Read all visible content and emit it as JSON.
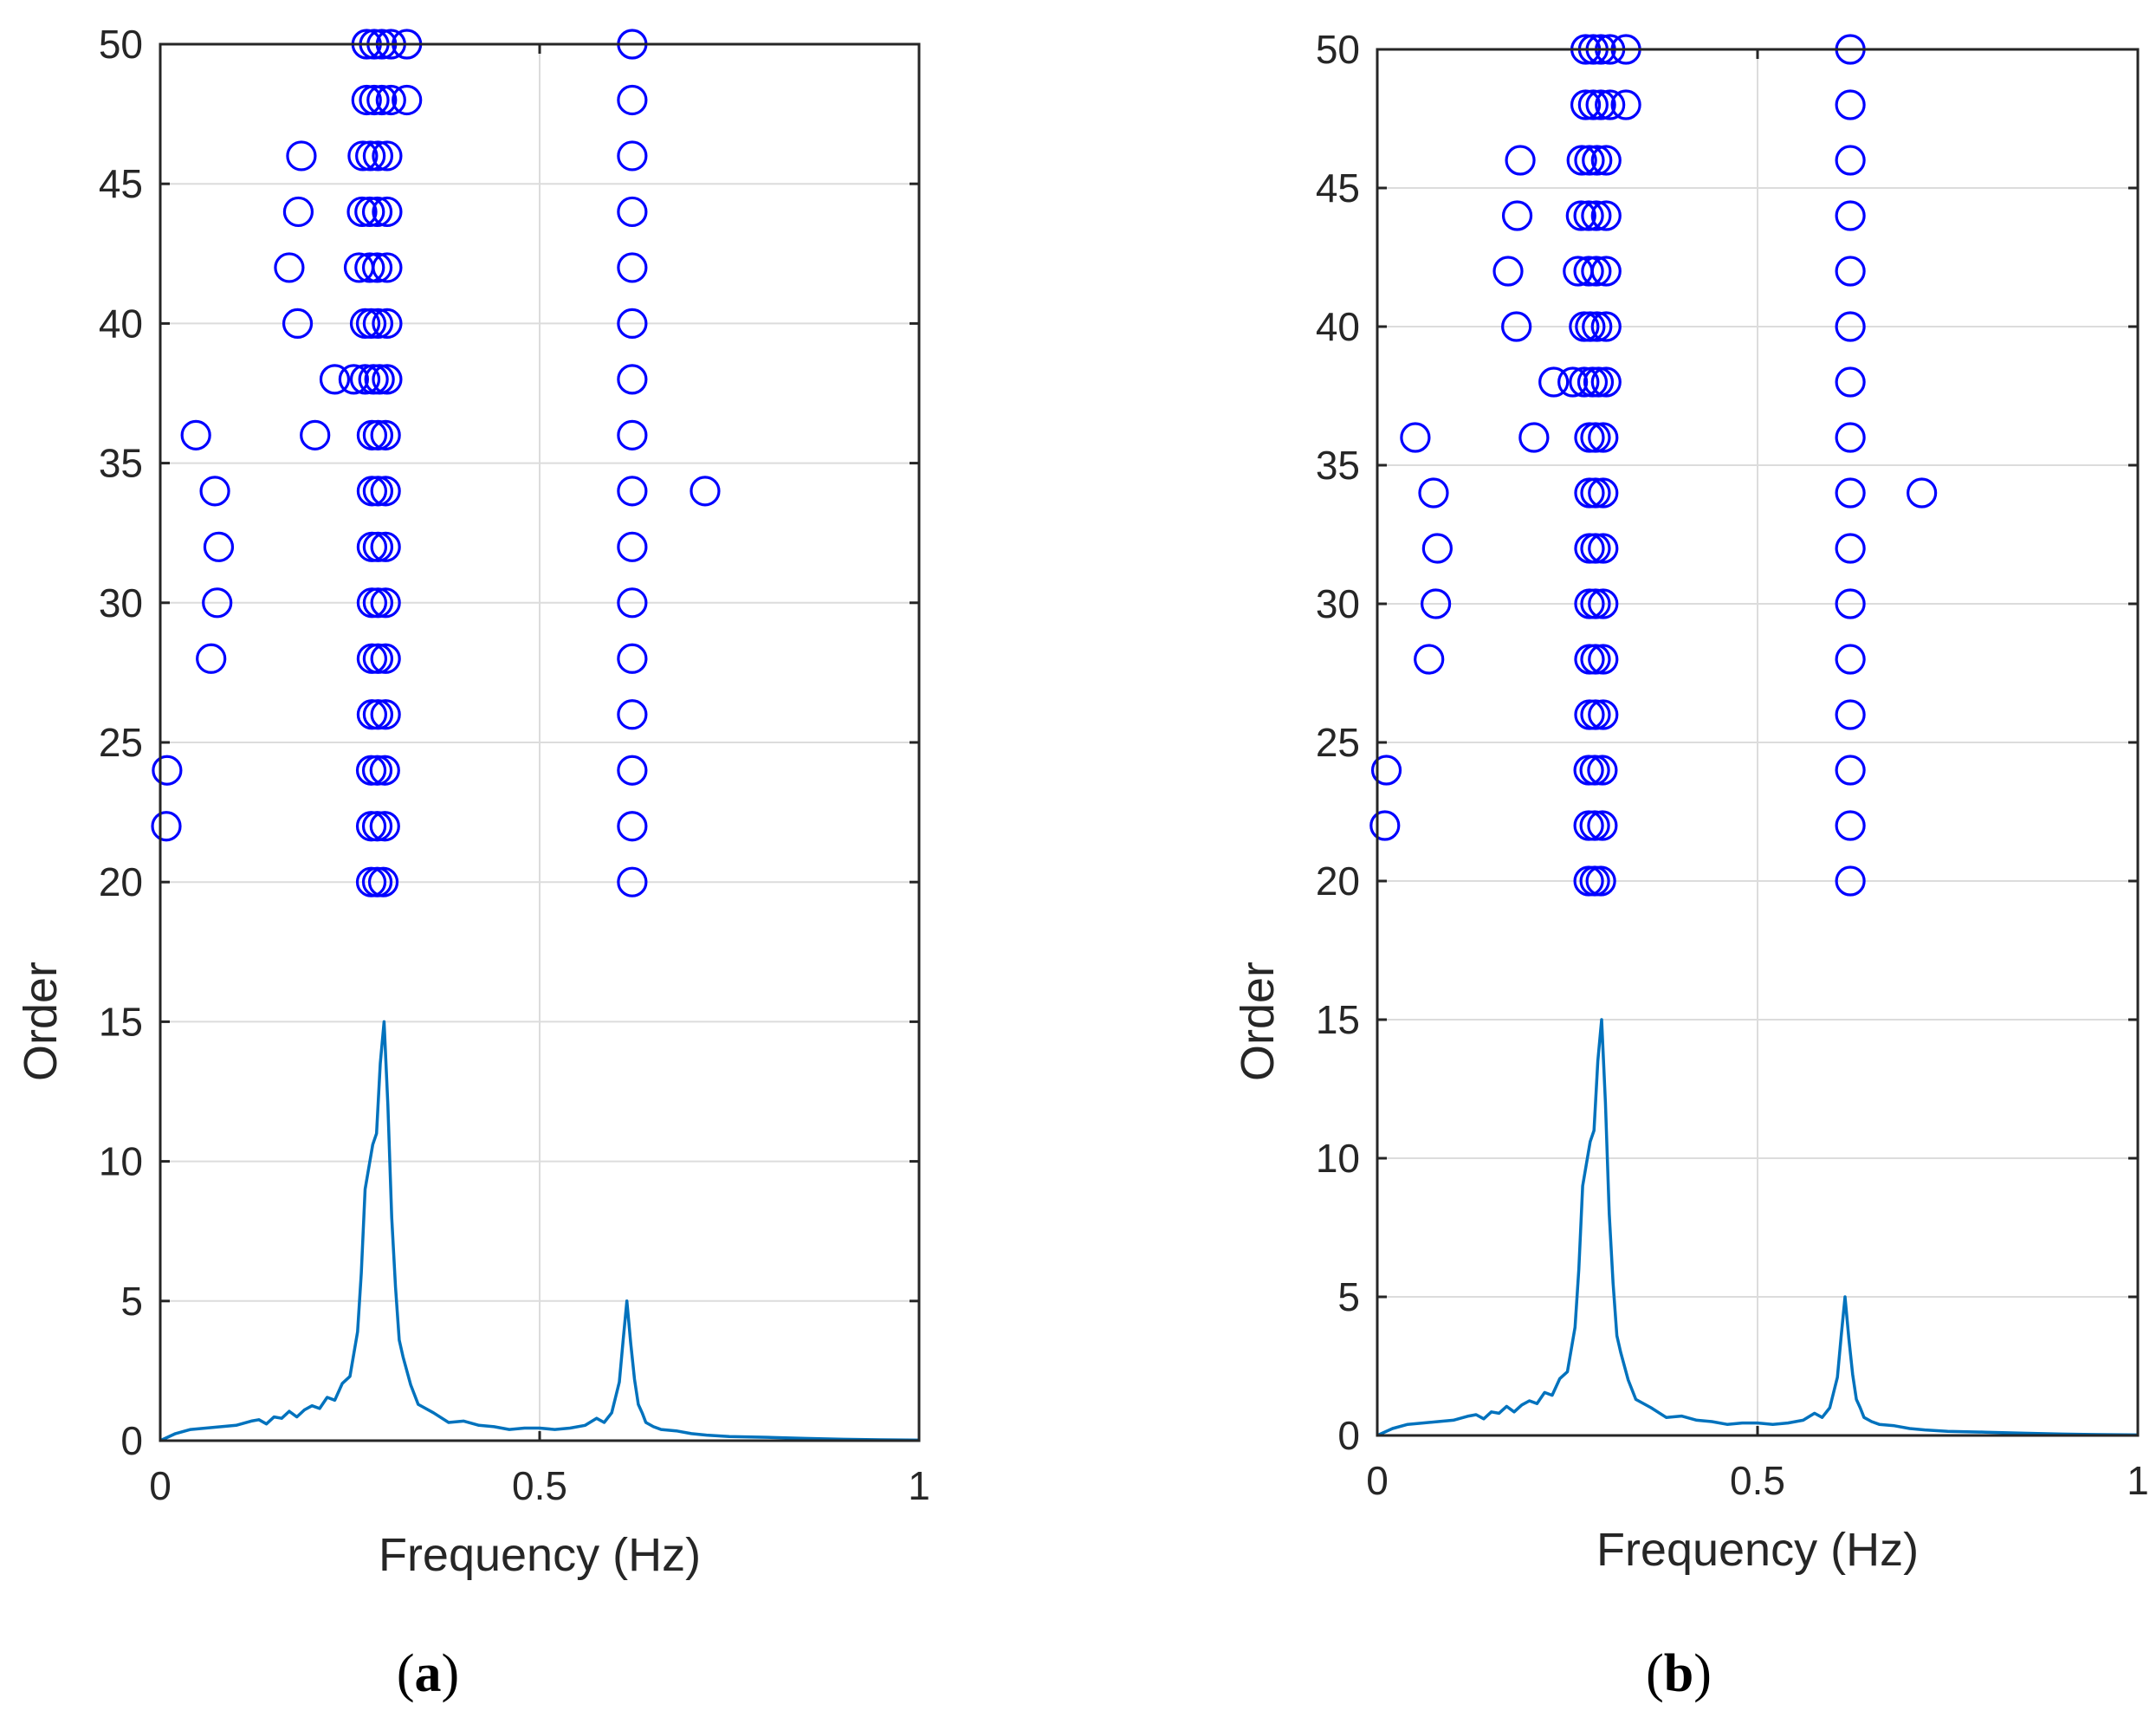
{
  "colors": {
    "marker": "#0000ff",
    "spectrum": "#0072bd",
    "axis": "#262626",
    "grid": "#dcdcdc"
  },
  "chart_data": [
    {
      "panel": "a",
      "type": "scatter+line",
      "panel_label": {
        "open": "(",
        "letter": "a",
        "close": ")"
      },
      "xlabel": "Frequency (Hz)",
      "ylabel": "Order",
      "xlim": [
        0,
        1
      ],
      "ylim": [
        0,
        50
      ],
      "xticks": [
        0,
        0.5,
        1
      ],
      "xtick_labels": [
        "0",
        "0.5",
        "1"
      ],
      "yticks": [
        0,
        5,
        10,
        15,
        20,
        25,
        30,
        35,
        40,
        45,
        50
      ],
      "ytick_labels": [
        "0",
        "5",
        "10",
        "15",
        "20",
        "25",
        "30",
        "35",
        "40",
        "45",
        "50"
      ],
      "grid": true,
      "stable_poles": [
        {
          "order": 20,
          "freqs": [
            0.278,
            0.286,
            0.294,
            0.622
          ]
        },
        {
          "order": 22,
          "freqs": [
            0.008,
            0.278,
            0.286,
            0.296,
            0.622
          ]
        },
        {
          "order": 24,
          "freqs": [
            0.009,
            0.278,
            0.286,
            0.296,
            0.622
          ]
        },
        {
          "order": 26,
          "freqs": [
            0.279,
            0.287,
            0.297,
            0.622
          ]
        },
        {
          "order": 28,
          "freqs": [
            0.067,
            0.279,
            0.287,
            0.297,
            0.622
          ]
        },
        {
          "order": 30,
          "freqs": [
            0.075,
            0.279,
            0.287,
            0.297,
            0.622
          ]
        },
        {
          "order": 32,
          "freqs": [
            0.077,
            0.279,
            0.287,
            0.297,
            0.622
          ]
        },
        {
          "order": 34,
          "freqs": [
            0.072,
            0.279,
            0.287,
            0.297,
            0.622,
            0.718
          ]
        },
        {
          "order": 36,
          "freqs": [
            0.047,
            0.204,
            0.279,
            0.287,
            0.297,
            0.622
          ]
        },
        {
          "order": 38,
          "freqs": [
            0.23,
            0.255,
            0.27,
            0.281,
            0.289,
            0.299,
            0.622
          ]
        },
        {
          "order": 40,
          "freqs": [
            0.181,
            0.27,
            0.278,
            0.287,
            0.299,
            0.622
          ]
        },
        {
          "order": 42,
          "freqs": [
            0.17,
            0.262,
            0.276,
            0.286,
            0.299,
            0.622
          ]
        },
        {
          "order": 44,
          "freqs": [
            0.182,
            0.266,
            0.276,
            0.286,
            0.299,
            0.622
          ]
        },
        {
          "order": 46,
          "freqs": [
            0.186,
            0.267,
            0.277,
            0.287,
            0.299,
            0.622
          ]
        },
        {
          "order": 48,
          "freqs": [
            0.272,
            0.282,
            0.292,
            0.304,
            0.325,
            0.622
          ]
        },
        {
          "order": 50,
          "freqs": [
            0.272,
            0.282,
            0.292,
            0.304,
            0.325,
            0.622
          ]
        }
      ],
      "spectrum": {
        "freq": [
          0.0,
          0.02,
          0.04,
          0.06,
          0.08,
          0.1,
          0.12,
          0.13,
          0.14,
          0.15,
          0.16,
          0.17,
          0.18,
          0.19,
          0.2,
          0.21,
          0.22,
          0.23,
          0.24,
          0.25,
          0.26,
          0.265,
          0.27,
          0.28,
          0.285,
          0.29,
          0.295,
          0.3,
          0.305,
          0.31,
          0.315,
          0.32,
          0.33,
          0.34,
          0.36,
          0.38,
          0.4,
          0.42,
          0.44,
          0.46,
          0.48,
          0.5,
          0.52,
          0.54,
          0.56,
          0.575,
          0.585,
          0.595,
          0.605,
          0.61,
          0.615,
          0.62,
          0.625,
          0.63,
          0.635,
          0.64,
          0.65,
          0.66,
          0.68,
          0.7,
          0.72,
          0.75,
          0.8,
          0.85,
          0.9,
          0.95,
          1.0
        ],
        "amplitude": [
          0.0,
          0.25,
          0.4,
          0.45,
          0.5,
          0.55,
          0.7,
          0.75,
          0.6,
          0.85,
          0.8,
          1.05,
          0.85,
          1.1,
          1.25,
          1.15,
          1.55,
          1.45,
          2.05,
          2.3,
          3.9,
          6.0,
          9.0,
          10.6,
          11.0,
          13.5,
          15.0,
          12.0,
          8.0,
          5.5,
          3.6,
          3.0,
          2.0,
          1.3,
          1.0,
          0.65,
          0.7,
          0.55,
          0.5,
          0.4,
          0.45,
          0.45,
          0.4,
          0.45,
          0.55,
          0.8,
          0.65,
          1.0,
          2.1,
          3.6,
          5.0,
          3.5,
          2.2,
          1.3,
          1.0,
          0.65,
          0.5,
          0.4,
          0.35,
          0.25,
          0.2,
          0.15,
          0.12,
          0.08,
          0.05,
          0.03,
          0.02
        ]
      }
    },
    {
      "panel": "b",
      "type": "scatter+line",
      "panel_label": {
        "open": "(",
        "letter": "b",
        "close": ")"
      },
      "xlabel": "Frequency (Hz)",
      "ylabel": "Order",
      "xlim": [
        0,
        1
      ],
      "ylim": [
        0,
        50
      ],
      "xticks": [
        0,
        0.5,
        1
      ],
      "xtick_labels": [
        "0",
        "0.5",
        "1"
      ],
      "yticks": [
        0,
        5,
        10,
        15,
        20,
        25,
        30,
        35,
        40,
        45,
        50
      ],
      "ytick_labels": [
        "0",
        "5",
        "10",
        "15",
        "20",
        "25",
        "30",
        "35",
        "40",
        "45",
        "50"
      ],
      "grid": true,
      "stable_poles": [
        {
          "order": 20,
          "freqs": [
            0.278,
            0.286,
            0.294,
            0.622
          ]
        },
        {
          "order": 22,
          "freqs": [
            0.01,
            0.278,
            0.286,
            0.296,
            0.622
          ]
        },
        {
          "order": 24,
          "freqs": [
            0.012,
            0.278,
            0.286,
            0.296,
            0.622
          ]
        },
        {
          "order": 26,
          "freqs": [
            0.279,
            0.287,
            0.297,
            0.622
          ]
        },
        {
          "order": 28,
          "freqs": [
            0.068,
            0.279,
            0.287,
            0.297,
            0.622
          ]
        },
        {
          "order": 30,
          "freqs": [
            0.077,
            0.279,
            0.287,
            0.297,
            0.622
          ]
        },
        {
          "order": 32,
          "freqs": [
            0.079,
            0.279,
            0.287,
            0.297,
            0.622
          ]
        },
        {
          "order": 34,
          "freqs": [
            0.074,
            0.279,
            0.287,
            0.297,
            0.622,
            0.716
          ]
        },
        {
          "order": 36,
          "freqs": [
            0.05,
            0.206,
            0.279,
            0.287,
            0.297,
            0.622
          ]
        },
        {
          "order": 38,
          "freqs": [
            0.232,
            0.257,
            0.272,
            0.283,
            0.291,
            0.301,
            0.622
          ]
        },
        {
          "order": 40,
          "freqs": [
            0.183,
            0.272,
            0.28,
            0.289,
            0.301,
            0.622
          ]
        },
        {
          "order": 42,
          "freqs": [
            0.172,
            0.264,
            0.278,
            0.288,
            0.301,
            0.622
          ]
        },
        {
          "order": 44,
          "freqs": [
            0.184,
            0.268,
            0.278,
            0.288,
            0.301,
            0.622
          ]
        },
        {
          "order": 46,
          "freqs": [
            0.188,
            0.269,
            0.279,
            0.289,
            0.301,
            0.622
          ]
        },
        {
          "order": 48,
          "freqs": [
            0.274,
            0.284,
            0.294,
            0.306,
            0.327,
            0.622
          ]
        },
        {
          "order": 50,
          "freqs": [
            0.274,
            0.284,
            0.294,
            0.306,
            0.327,
            0.622
          ]
        }
      ],
      "spectrum": {
        "freq": [
          0.0,
          0.02,
          0.04,
          0.06,
          0.08,
          0.1,
          0.12,
          0.13,
          0.14,
          0.15,
          0.16,
          0.17,
          0.18,
          0.19,
          0.2,
          0.21,
          0.22,
          0.23,
          0.24,
          0.25,
          0.26,
          0.265,
          0.27,
          0.28,
          0.285,
          0.29,
          0.295,
          0.3,
          0.305,
          0.31,
          0.315,
          0.32,
          0.33,
          0.34,
          0.36,
          0.38,
          0.4,
          0.42,
          0.44,
          0.46,
          0.48,
          0.5,
          0.52,
          0.54,
          0.56,
          0.575,
          0.585,
          0.595,
          0.605,
          0.61,
          0.615,
          0.62,
          0.625,
          0.63,
          0.635,
          0.64,
          0.65,
          0.66,
          0.68,
          0.7,
          0.72,
          0.75,
          0.8,
          0.85,
          0.9,
          0.95,
          1.0
        ],
        "amplitude": [
          0.0,
          0.25,
          0.4,
          0.45,
          0.5,
          0.55,
          0.7,
          0.75,
          0.6,
          0.85,
          0.8,
          1.05,
          0.85,
          1.1,
          1.25,
          1.15,
          1.55,
          1.45,
          2.05,
          2.3,
          3.9,
          6.0,
          9.0,
          10.6,
          11.0,
          13.5,
          15.0,
          12.0,
          8.0,
          5.5,
          3.6,
          3.0,
          2.0,
          1.3,
          1.0,
          0.65,
          0.7,
          0.55,
          0.5,
          0.4,
          0.45,
          0.45,
          0.4,
          0.45,
          0.55,
          0.8,
          0.65,
          1.0,
          2.1,
          3.6,
          5.0,
          3.5,
          2.2,
          1.3,
          1.0,
          0.65,
          0.5,
          0.4,
          0.35,
          0.25,
          0.2,
          0.15,
          0.12,
          0.08,
          0.05,
          0.03,
          0.02
        ]
      }
    }
  ]
}
